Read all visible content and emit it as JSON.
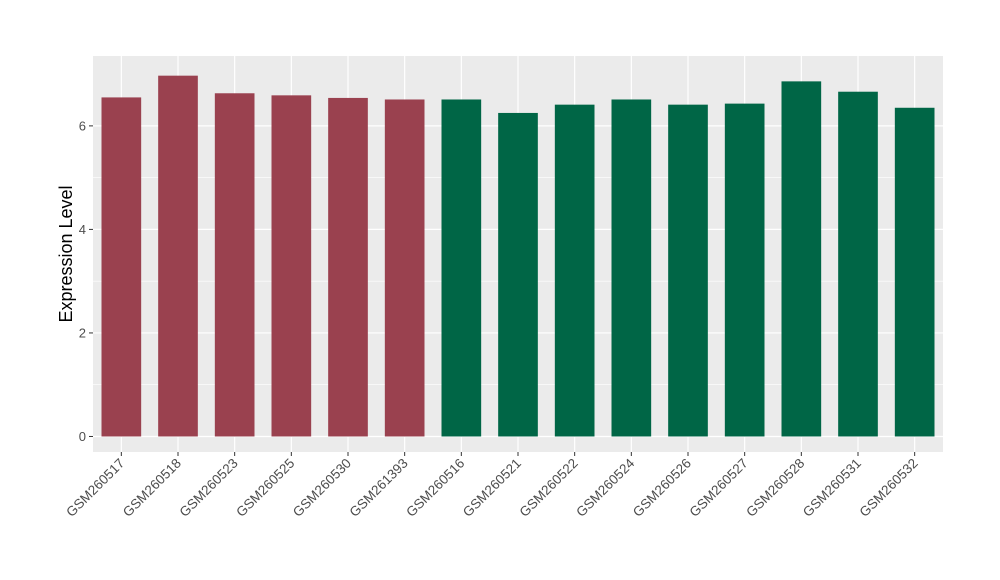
{
  "chart_data": {
    "type": "bar",
    "title": "",
    "xlabel": "",
    "ylabel": "Expression Level",
    "ylim": [
      -0.3,
      7.35
    ],
    "yticks": [
      0,
      2,
      4,
      6
    ],
    "grid": true,
    "legend": "none",
    "colors": {
      "group1": "#9a414f",
      "group2": "#006646",
      "panel": "#ebebeb",
      "grid": "#ffffff"
    },
    "categories": [
      "GSM260517",
      "GSM260518",
      "GSM260523",
      "GSM260525",
      "GSM260530",
      "GSM261393",
      "GSM260516",
      "GSM260521",
      "GSM260522",
      "GSM260524",
      "GSM260526",
      "GSM260527",
      "GSM260528",
      "GSM260531",
      "GSM260532"
    ],
    "values": [
      6.55,
      6.97,
      6.63,
      6.59,
      6.54,
      6.51,
      6.51,
      6.25,
      6.41,
      6.51,
      6.41,
      6.43,
      6.86,
      6.66,
      6.35
    ],
    "groups": [
      "group1",
      "group1",
      "group1",
      "group1",
      "group1",
      "group1",
      "group2",
      "group2",
      "group2",
      "group2",
      "group2",
      "group2",
      "group2",
      "group2",
      "group2"
    ]
  }
}
